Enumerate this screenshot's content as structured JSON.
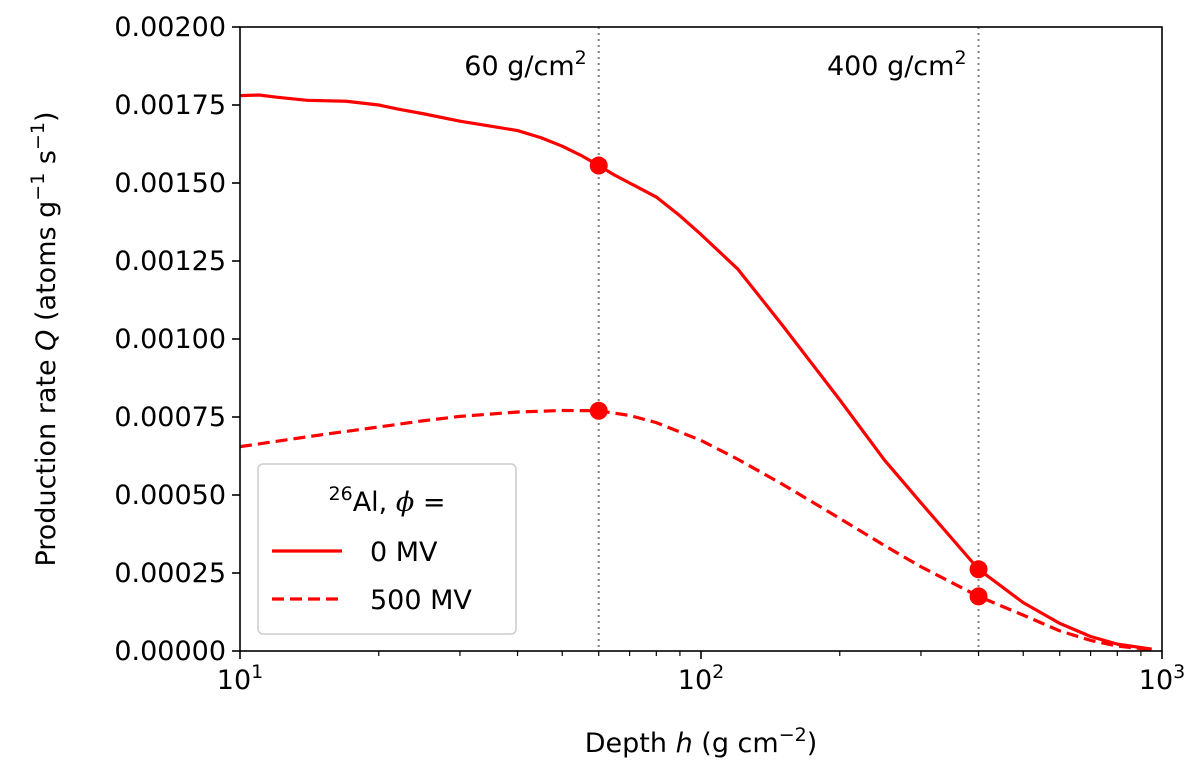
{
  "chart_data": {
    "type": "line",
    "xscale": "log",
    "xlim": [
      10,
      1000
    ],
    "ylim": [
      0,
      0.002
    ],
    "xlabel": {
      "prefix": "Depth ",
      "var": "h",
      "suffix": " (g cm",
      "sup": "−2",
      "end": ")"
    },
    "ylabel": {
      "prefix": "Production rate ",
      "var": "Q",
      "suffix": " (atoms g",
      "sup1": "−1",
      "mid": " s",
      "sup2": "−1",
      "end": ")"
    },
    "xticks": [
      {
        "value": 10,
        "base": "10",
        "exp": "1"
      },
      {
        "value": 100,
        "base": "10",
        "exp": "2"
      },
      {
        "value": 1000,
        "base": "10",
        "exp": "3"
      }
    ],
    "yticks": [
      {
        "value": 0.0,
        "label": "0.00000"
      },
      {
        "value": 0.00025,
        "label": "0.00025"
      },
      {
        "value": 0.0005,
        "label": "0.00050"
      },
      {
        "value": 0.00075,
        "label": "0.00075"
      },
      {
        "value": 0.001,
        "label": "0.00100"
      },
      {
        "value": 0.00125,
        "label": "0.00125"
      },
      {
        "value": 0.0015,
        "label": "0.00150"
      },
      {
        "value": 0.00175,
        "label": "0.00175"
      },
      {
        "value": 0.002,
        "label": "0.00200"
      }
    ],
    "vlines": [
      {
        "x": 60,
        "label": "60 g/cm",
        "sup": "2"
      },
      {
        "x": 400,
        "label": "400 g/cm",
        "sup": "2"
      }
    ],
    "legend": {
      "position": "lower-left",
      "title": {
        "sup": "26",
        "element": "Al, ",
        "var": "ϕ",
        "end": " ="
      }
    },
    "color": "#ff0000",
    "series": [
      {
        "name": "0 MV",
        "style": "solid",
        "x": [
          10,
          11,
          12,
          14,
          17,
          20,
          22,
          25,
          30,
          35,
          40,
          45,
          50,
          55,
          60,
          65,
          70,
          80,
          90,
          100,
          120,
          150,
          200,
          250,
          300,
          400,
          500,
          600,
          700,
          800,
          950
        ],
        "y": [
          0.00178,
          0.001782,
          0.001775,
          0.001765,
          0.001762,
          0.00175,
          0.001737,
          0.001722,
          0.001698,
          0.001682,
          0.001668,
          0.001645,
          0.001618,
          0.001588,
          0.001556,
          0.001525,
          0.0015,
          0.001455,
          0.001395,
          0.001335,
          0.001225,
          0.001045,
          0.000805,
          0.000612,
          0.000475,
          0.000262,
          0.000155,
          8.85e-05,
          4.65e-05,
          2.2e-05,
          6e-06
        ]
      },
      {
        "name": "500 MV",
        "style": "dashed",
        "x": [
          10,
          12,
          15,
          20,
          25,
          30,
          40,
          50,
          60,
          70,
          80,
          100,
          120,
          150,
          200,
          250,
          300,
          400,
          500,
          600,
          700,
          800,
          950
        ],
        "y": [
          0.000655,
          0.000672,
          0.000693,
          0.000718,
          0.000738,
          0.000752,
          0.000766,
          0.000771,
          0.00077,
          0.000755,
          0.000732,
          0.000675,
          0.000615,
          0.000535,
          0.000425,
          0.000338,
          0.00027,
          0.000175,
          0.000115,
          6.45e-05,
          3.4e-05,
          1.55e-05,
          4e-06
        ]
      }
    ],
    "markers": [
      {
        "x": 60,
        "y": 0.001556
      },
      {
        "x": 60,
        "y": 0.00077
      },
      {
        "x": 400,
        "y": 0.000262
      },
      {
        "x": 400,
        "y": 0.000175
      }
    ]
  }
}
